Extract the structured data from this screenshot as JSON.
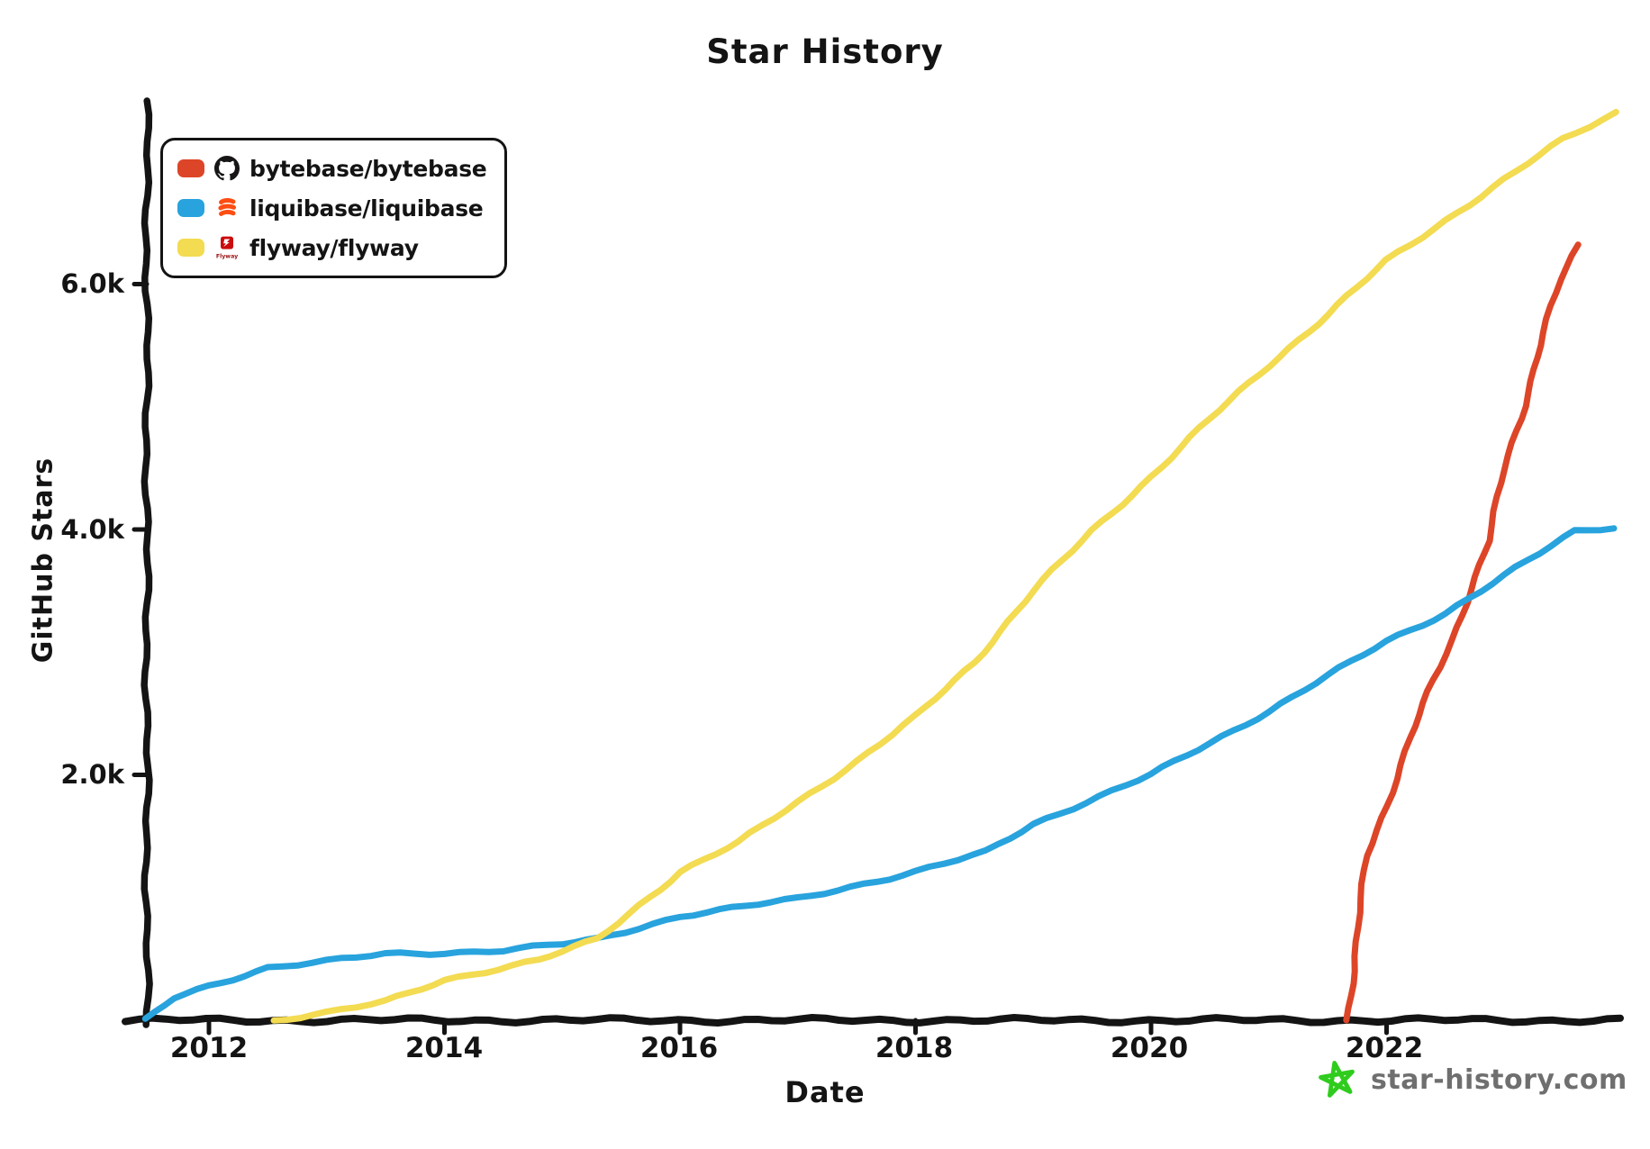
{
  "title": "Star History",
  "axes": {
    "x_label": "Date",
    "y_label": "GitHub Stars",
    "x_ticks": [
      {
        "label": "2012",
        "year": 2012
      },
      {
        "label": "2014",
        "year": 2014
      },
      {
        "label": "2016",
        "year": 2016
      },
      {
        "label": "2018",
        "year": 2018
      },
      {
        "label": "2020",
        "year": 2020
      },
      {
        "label": "2022",
        "year": 2022
      }
    ],
    "y_ticks": [
      {
        "label": "2.0k",
        "value": 2000
      },
      {
        "label": "4.0k",
        "value": 4000
      },
      {
        "label": "6.0k",
        "value": 6000
      }
    ]
  },
  "legend": [
    {
      "label": "bytebase/bytebase",
      "color": "#dd4528",
      "icon": "github-icon"
    },
    {
      "label": "liquibase/liquibase",
      "color": "#28a3dd",
      "icon": "liquibase-icon"
    },
    {
      "label": "flyway/flyway",
      "color": "#f3db52",
      "icon": "flyway-icon",
      "icon_text": "Flyway"
    }
  ],
  "watermark": {
    "text": "star-history.com",
    "text_color": "#6f6f6f",
    "star_color": "#2fcc1e",
    "icon": "star-icon"
  },
  "colors": {
    "axis": "#141414",
    "background": "#ffffff"
  },
  "chart_data": {
    "type": "line",
    "title": "Star History",
    "xlabel": "Date",
    "ylabel": "GitHub Stars",
    "x_unit": "decimal_year",
    "xlim": [
      2011.45,
      2023.95
    ],
    "ylim": [
      0,
      7450
    ],
    "grid": false,
    "legend_position": "top-left",
    "series": [
      {
        "name": "bytebase/bytebase",
        "color": "#dd4528",
        "points": [
          [
            2021.66,
            0
          ],
          [
            2021.72,
            400
          ],
          [
            2021.76,
            760
          ],
          [
            2021.83,
            1340
          ],
          [
            2022.0,
            1750
          ],
          [
            2022.2,
            2300
          ],
          [
            2022.4,
            2770
          ],
          [
            2022.56,
            3100
          ],
          [
            2022.71,
            3510
          ],
          [
            2022.87,
            3910
          ],
          [
            2023.0,
            4500
          ],
          [
            2023.17,
            5010
          ],
          [
            2023.33,
            5600
          ],
          [
            2023.48,
            6040
          ],
          [
            2023.63,
            6320
          ]
        ]
      },
      {
        "name": "liquibase/liquibase",
        "color": "#28a3dd",
        "points": [
          [
            2011.47,
            0
          ],
          [
            2011.7,
            180
          ],
          [
            2012.0,
            280
          ],
          [
            2012.5,
            430
          ],
          [
            2013.0,
            480
          ],
          [
            2013.5,
            540
          ],
          [
            2014.0,
            550
          ],
          [
            2014.5,
            570
          ],
          [
            2015.0,
            620
          ],
          [
            2015.3,
            660
          ],
          [
            2016.0,
            850
          ],
          [
            2017.0,
            990
          ],
          [
            2018.0,
            1210
          ],
          [
            2018.6,
            1370
          ],
          [
            2019.0,
            1600
          ],
          [
            2020.0,
            2000
          ],
          [
            2021.0,
            2520
          ],
          [
            2022.0,
            3090
          ],
          [
            2022.5,
            3320
          ],
          [
            2023.0,
            3620
          ],
          [
            2023.6,
            3990
          ],
          [
            2023.93,
            4020
          ]
        ]
      },
      {
        "name": "flyway/flyway",
        "color": "#f3db52",
        "points": [
          [
            2012.55,
            0
          ],
          [
            2013.0,
            60
          ],
          [
            2013.5,
            150
          ],
          [
            2014.0,
            330
          ],
          [
            2014.8,
            490
          ],
          [
            2015.3,
            660
          ],
          [
            2016.0,
            1210
          ],
          [
            2016.5,
            1450
          ],
          [
            2017.0,
            1780
          ],
          [
            2017.5,
            2110
          ],
          [
            2018.0,
            2470
          ],
          [
            2018.5,
            2920
          ],
          [
            2019.0,
            3500
          ],
          [
            2019.5,
            3990
          ],
          [
            2020.0,
            4430
          ],
          [
            2020.5,
            4900
          ],
          [
            2021.0,
            5340
          ],
          [
            2021.5,
            5750
          ],
          [
            2022.0,
            6190
          ],
          [
            2022.5,
            6520
          ],
          [
            2023.0,
            6850
          ],
          [
            2023.5,
            7180
          ],
          [
            2023.95,
            7400
          ]
        ]
      }
    ]
  }
}
